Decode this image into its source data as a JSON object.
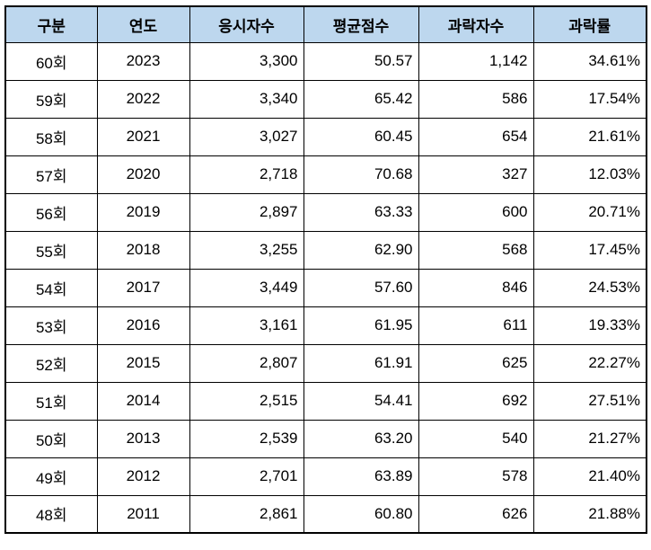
{
  "colors": {
    "header_bg": "#BDD7EE",
    "border": "#000000",
    "text": "#000000",
    "page_bg": "#FFFFFF"
  },
  "chart_data": {
    "type": "table",
    "title": "",
    "columns": [
      "구분",
      "연도",
      "응시자수",
      "평균점수",
      "과락자수",
      "과락률"
    ],
    "rows": [
      [
        "60회",
        "2023",
        "3,300",
        "50.57",
        "1,142",
        "34.61%"
      ],
      [
        "59회",
        "2022",
        "3,340",
        "65.42",
        "586",
        "17.54%"
      ],
      [
        "58회",
        "2021",
        "3,027",
        "60.45",
        "654",
        "21.61%"
      ],
      [
        "57회",
        "2020",
        "2,718",
        "70.68",
        "327",
        "12.03%"
      ],
      [
        "56회",
        "2019",
        "2,897",
        "63.33",
        "600",
        "20.71%"
      ],
      [
        "55회",
        "2018",
        "3,255",
        "62.90",
        "568",
        "17.45%"
      ],
      [
        "54회",
        "2017",
        "3,449",
        "57.60",
        "846",
        "24.53%"
      ],
      [
        "53회",
        "2016",
        "3,161",
        "61.95",
        "611",
        "19.33%"
      ],
      [
        "52회",
        "2015",
        "2,807",
        "61.91",
        "625",
        "22.27%"
      ],
      [
        "51회",
        "2014",
        "2,515",
        "54.41",
        "692",
        "27.51%"
      ],
      [
        "50회",
        "2013",
        "2,539",
        "63.20",
        "540",
        "21.27%"
      ],
      [
        "49회",
        "2012",
        "2,701",
        "63.89",
        "578",
        "21.40%"
      ],
      [
        "48회",
        "2011",
        "2,861",
        "60.80",
        "626",
        "21.88%"
      ]
    ]
  }
}
